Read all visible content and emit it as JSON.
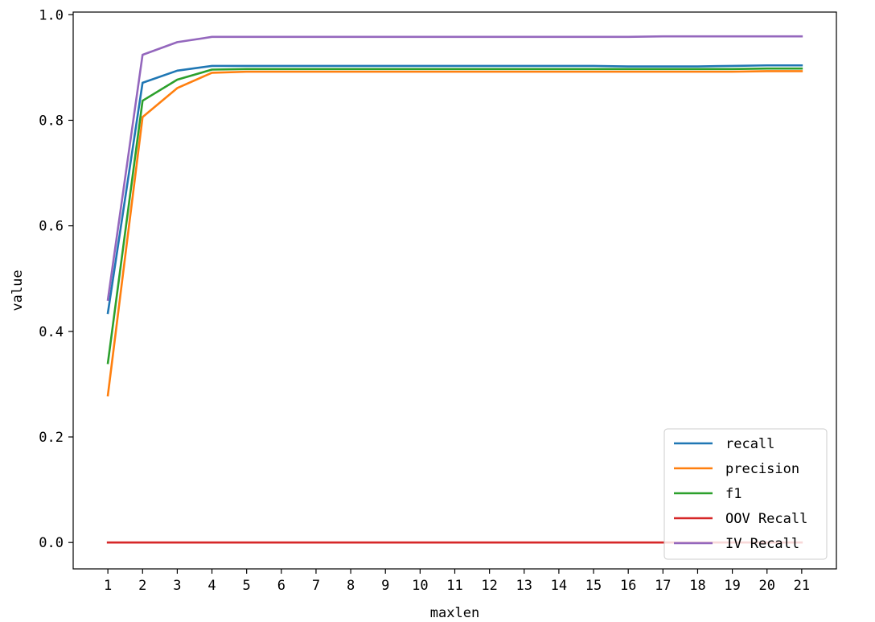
{
  "chart_data": {
    "type": "line",
    "title": "",
    "xlabel": "maxlen",
    "ylabel": "value",
    "x": [
      1,
      2,
      3,
      4,
      5,
      6,
      7,
      8,
      9,
      10,
      11,
      12,
      13,
      14,
      15,
      16,
      17,
      18,
      19,
      20,
      21
    ],
    "x_tick_labels": [
      "1",
      "2",
      "3",
      "4",
      "5",
      "6",
      "7",
      "8",
      "9",
      "10",
      "11",
      "12",
      "13",
      "14",
      "15",
      "16",
      "17",
      "18",
      "19",
      "20",
      "21"
    ],
    "y_tick_values": [
      0.0,
      0.2,
      0.4,
      0.6,
      0.8,
      1.0
    ],
    "y_tick_labels": [
      "0.0",
      "0.2",
      "0.4",
      "0.6",
      "0.8",
      "1.0"
    ],
    "xlim": [
      0.0,
      22.0
    ],
    "ylim": [
      -0.05,
      1.005
    ],
    "grid": false,
    "legend_position": "lower-right",
    "series": [
      {
        "name": "recall",
        "color": "#1f77b4",
        "values": [
          0.435,
          0.871,
          0.894,
          0.903,
          0.903,
          0.903,
          0.903,
          0.903,
          0.903,
          0.903,
          0.903,
          0.903,
          0.903,
          0.903,
          0.903,
          0.902,
          0.902,
          0.902,
          0.903,
          0.904,
          0.904
        ]
      },
      {
        "name": "precision",
        "color": "#ff7f0e",
        "values": [
          0.279,
          0.806,
          0.861,
          0.89,
          0.892,
          0.892,
          0.892,
          0.892,
          0.892,
          0.892,
          0.892,
          0.892,
          0.892,
          0.892,
          0.892,
          0.892,
          0.892,
          0.892,
          0.892,
          0.893,
          0.893
        ]
      },
      {
        "name": "f1",
        "color": "#2ca02c",
        "values": [
          0.34,
          0.837,
          0.877,
          0.896,
          0.897,
          0.897,
          0.897,
          0.897,
          0.897,
          0.897,
          0.897,
          0.897,
          0.897,
          0.897,
          0.897,
          0.897,
          0.897,
          0.897,
          0.897,
          0.898,
          0.898
        ]
      },
      {
        "name": "OOV Recall",
        "color": "#d62728",
        "values": [
          0.0,
          0.0,
          0.0,
          0.0,
          0.0,
          0.0,
          0.0,
          0.0,
          0.0,
          0.0,
          0.0,
          0.0,
          0.0,
          0.0,
          0.0,
          0.0,
          0.0,
          0.0,
          0.0,
          0.0,
          0.0
        ]
      },
      {
        "name": "IV Recall",
        "color": "#9467bd",
        "values": [
          0.46,
          0.924,
          0.948,
          0.958,
          0.958,
          0.958,
          0.958,
          0.958,
          0.958,
          0.958,
          0.958,
          0.958,
          0.958,
          0.958,
          0.958,
          0.958,
          0.959,
          0.959,
          0.959,
          0.959,
          0.959
        ]
      }
    ]
  }
}
